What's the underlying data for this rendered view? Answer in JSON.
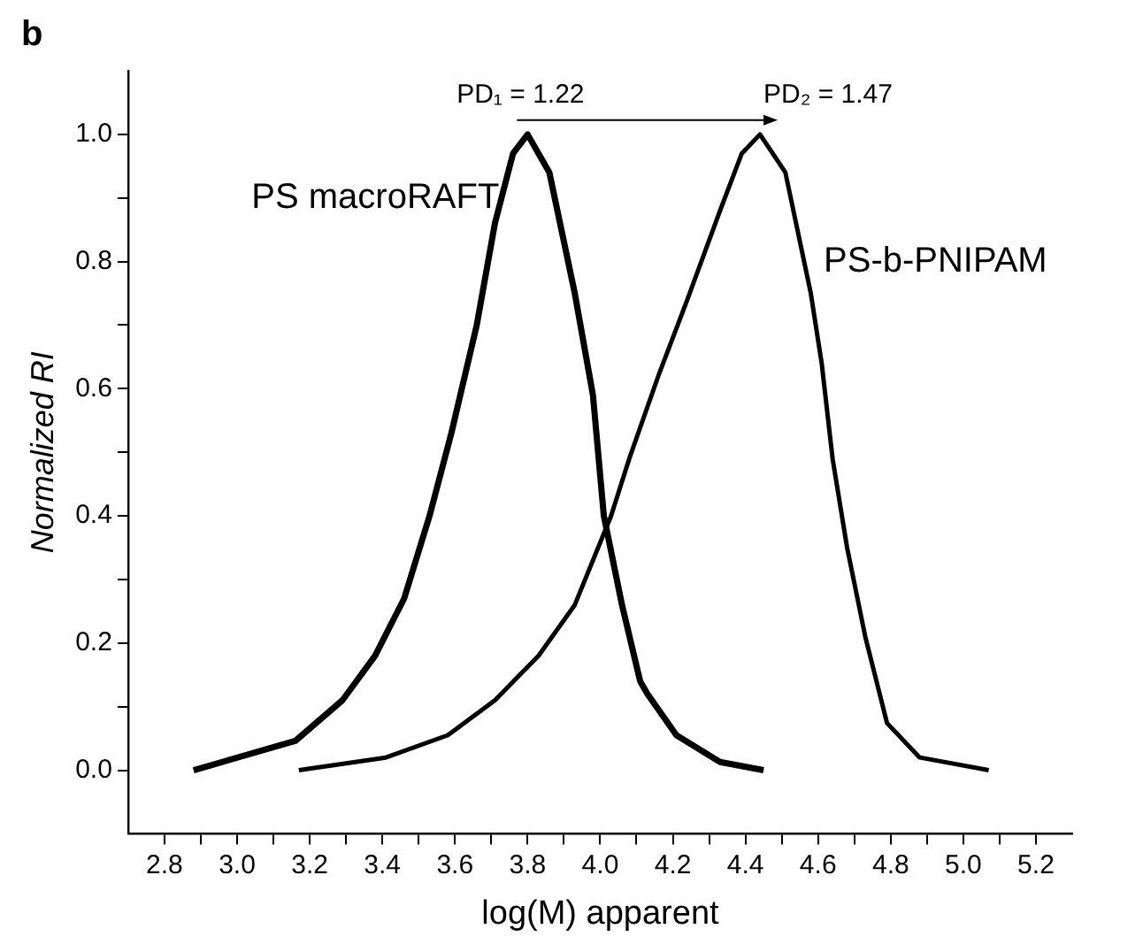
{
  "chart_data": {
    "type": "line",
    "title": "b",
    "xlabel": "log(M) apparent",
    "ylabel": "Normalized RI",
    "xlim": [
      2.7,
      5.3
    ],
    "ylim": [
      -0.1,
      1.1
    ],
    "xticks": [
      2.8,
      {
        "value": 2.9,
        "label": null
      },
      {
        "value": 3,
        "label": "3.0"
      },
      {
        "value": 3.1,
        "label": null
      },
      3.2,
      {
        "value": 3.3,
        "label": null
      },
      3.4,
      {
        "value": 3.5,
        "label": null
      },
      3.6,
      {
        "value": 3.7,
        "label": null
      },
      3.8,
      {
        "value": 3.9,
        "label": null
      },
      {
        "value": 4,
        "label": "4.0"
      },
      {
        "value": 4.1,
        "label": null
      },
      4.2,
      {
        "value": 4.3,
        "label": null
      },
      4.4,
      {
        "value": 4.5,
        "label": null
      },
      4.6,
      {
        "value": 4.7,
        "label": null
      },
      4.8,
      {
        "value": 4.9,
        "label": null
      },
      {
        "value": 5,
        "label": "5.0"
      },
      {
        "value": 5.1,
        "label": null
      },
      5.2
    ],
    "yticks": [
      {
        "value": 0,
        "label": "0.0"
      },
      {
        "value": 0.1,
        "label": null
      },
      0.2,
      {
        "value": 0.3,
        "label": null
      },
      0.4,
      {
        "value": 0.5,
        "label": null
      },
      0.6,
      {
        "value": 0.7,
        "label": null
      },
      0.8,
      {
        "value": 0.9,
        "label": null
      },
      {
        "value": 1,
        "label": "1.0"
      }
    ],
    "line_style": "solid",
    "grid": false,
    "series": [
      {
        "name": "PS macroRAFT",
        "color": "#000000",
        "x": [
          2.88,
          3.16,
          3.29,
          3.38,
          3.46,
          3.53,
          3.59,
          3.66,
          3.71,
          3.76,
          3.8,
          3.86,
          3.93,
          3.98,
          4.01,
          4.06,
          4.11,
          4.13,
          4.21,
          4.33,
          4.45
        ],
        "values": [
          0,
          0.046,
          0.11,
          0.18,
          0.27,
          0.4,
          0.53,
          0.7,
          0.86,
          0.97,
          1.0,
          0.94,
          0.75,
          0.59,
          0.4,
          0.26,
          0.14,
          0.12,
          0.055,
          0.013,
          0
        ]
      },
      {
        "name": "PS-b-PNIPAM",
        "color": "#000000",
        "x": [
          3.17,
          3.41,
          3.58,
          3.71,
          3.83,
          3.93,
          4.03,
          4.08,
          4.16,
          4.24,
          4.33,
          4.39,
          4.44,
          4.51,
          4.58,
          4.61,
          4.64,
          4.68,
          4.73,
          4.79,
          4.88,
          5.07
        ],
        "values": [
          0,
          0.02,
          0.055,
          0.11,
          0.18,
          0.26,
          0.4,
          0.49,
          0.62,
          0.74,
          0.88,
          0.97,
          1.0,
          0.94,
          0.75,
          0.64,
          0.49,
          0.35,
          0.21,
          0.074,
          0.02,
          0
        ]
      }
    ],
    "annotations": [
      "PD₁ = 1.22",
      "PD₂ = 1.47"
    ]
  }
}
